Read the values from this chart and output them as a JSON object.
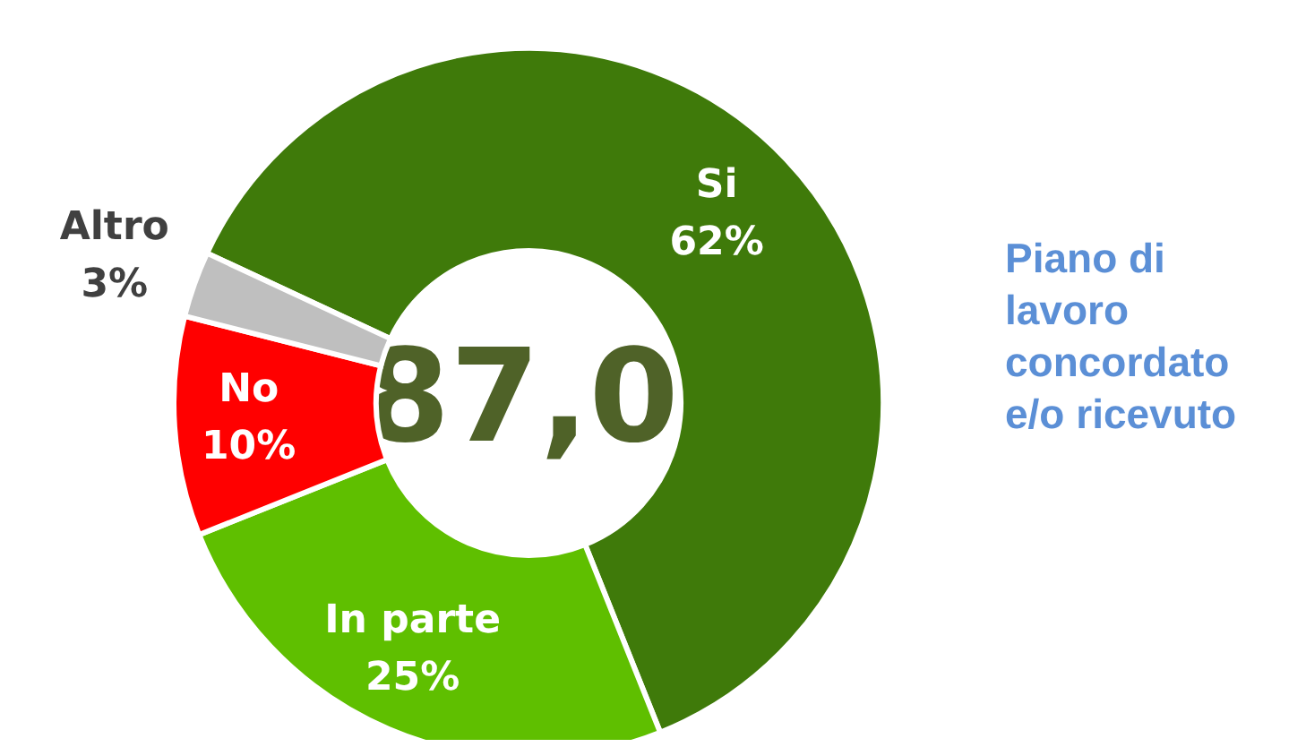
{
  "chart_data": {
    "type": "donut",
    "title": "Piano di lavoro concordato e/o ricevuto",
    "categories": [
      "Si",
      "In parte",
      "No",
      "Altro"
    ],
    "values": [
      62,
      25,
      10,
      3
    ],
    "value_labels": [
      "62%",
      "25%",
      "10%",
      "3%"
    ],
    "colors": [
      "#3f7a0a",
      "#5fbf00",
      "#ff0000",
      "#bfbfbf"
    ],
    "annotations": [
      "87,0"
    ],
    "legend": false
  }
}
